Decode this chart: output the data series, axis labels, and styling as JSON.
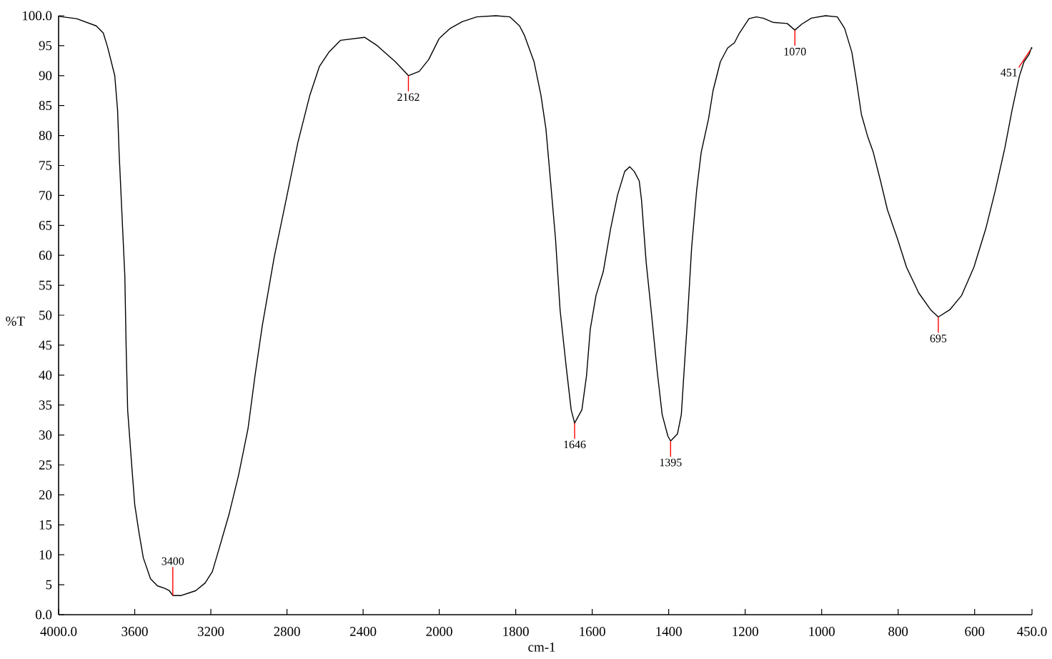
{
  "chart_data": [
    {
      "type": "line",
      "ylabel": "%T",
      "color": "#000000",
      "x": [
        4000,
        3905,
        3802,
        3765,
        3742,
        3705,
        3690,
        3682,
        3667,
        3652,
        3645,
        3637,
        3615,
        3600,
        3577,
        3555,
        3517,
        3480,
        3442,
        3418,
        3400,
        3355,
        3280,
        3230,
        3192,
        3155,
        3105,
        3055,
        3005,
        2968,
        2930,
        2867,
        2805,
        2743,
        2680,
        2630,
        2580,
        2518,
        2392,
        2330,
        2230,
        2162,
        2105,
        2055,
        2005,
        2000
      ],
      "values": [
        99.9,
        99.5,
        98.3,
        97.1,
        94.7,
        90.0,
        84.2,
        77.1,
        66.8,
        56.6,
        44.6,
        34.1,
        24.6,
        18.4,
        13.6,
        9.5,
        6.0,
        4.8,
        4.4,
        4.0,
        3.2,
        3.2,
        4.0,
        5.3,
        7.2,
        11.2,
        16.7,
        23.2,
        31.0,
        39.9,
        48.2,
        59.7,
        69.2,
        78.8,
        86.7,
        91.5,
        93.9,
        95.9,
        96.4,
        95.1,
        92.3,
        90.0,
        90.7,
        92.7,
        95.9,
        96.2
      ],
      "xlim": [
        4000,
        2000
      ],
      "ylim": [
        0,
        100
      ],
      "xticks": [
        {
          "value": 4000,
          "label": "4000.0"
        },
        3600,
        3200,
        2800,
        2400,
        2000
      ],
      "yticks": [
        {
          "value": 0,
          "label": "0.0"
        },
        5,
        10,
        15,
        20,
        25,
        30,
        35,
        40,
        45,
        50,
        55,
        60,
        65,
        70,
        75,
        80,
        85,
        90,
        95,
        {
          "value": 100,
          "label": "100.0"
        }
      ],
      "annotations": [
        {
          "text": "3400",
          "x": 3400,
          "y": 3.2
        },
        {
          "text": "2162",
          "x": 2162,
          "y": 90.0
        }
      ]
    },
    {
      "type": "line",
      "xlabel": "cm-1",
      "color": "#000000",
      "tick_labels": "x",
      "x": [
        2000,
        1971,
        1940,
        1902,
        1852,
        1815,
        1790,
        1777,
        1752,
        1734,
        1721,
        1709,
        1696,
        1684,
        1668,
        1655,
        1646,
        1627,
        1615,
        1605,
        1590,
        1571,
        1552,
        1534,
        1515,
        1502,
        1490,
        1477,
        1471,
        1459,
        1446,
        1430,
        1417,
        1402,
        1395,
        1377,
        1367,
        1359,
        1352,
        1340,
        1327,
        1315,
        1296,
        1284,
        1265,
        1246,
        1228,
        1215,
        1190,
        1171,
        1153,
        1128,
        1090,
        1070,
        1052,
        1027,
        990,
        959,
        940,
        921,
        909,
        896,
        880,
        865,
        846,
        828,
        802,
        778,
        746,
        715,
        695,
        665,
        634,
        602,
        571,
        546,
        521,
        502,
        483,
        471,
        458,
        451,
        450
      ],
      "values": [
        96.2,
        97.9,
        99.0,
        99.8,
        100.0,
        99.8,
        98.3,
        96.7,
        92.3,
        86.7,
        81.1,
        72.4,
        62.8,
        50.9,
        41.4,
        34.2,
        32.0,
        34.2,
        39.8,
        47.7,
        53.3,
        57.3,
        64.4,
        70.0,
        74.0,
        74.8,
        74.0,
        72.4,
        69.2,
        58.9,
        50.9,
        40.6,
        33.4,
        29.8,
        29.0,
        30.2,
        33.4,
        41.4,
        48.2,
        61.3,
        70.8,
        77.2,
        82.7,
        87.5,
        92.3,
        94.6,
        95.5,
        97.1,
        99.5,
        99.8,
        99.6,
        98.9,
        98.7,
        97.6,
        98.6,
        99.6,
        100.0,
        99.8,
        97.9,
        93.9,
        89.1,
        83.5,
        79.9,
        77.2,
        72.4,
        67.6,
        62.8,
        58.0,
        53.7,
        50.9,
        49.7,
        50.9,
        53.3,
        58.0,
        64.4,
        70.8,
        77.9,
        84.3,
        89.9,
        92.3,
        93.5,
        94.7,
        94.5
      ],
      "xlim": [
        2000,
        450
      ],
      "ylim": [
        0,
        100
      ],
      "xticks": [
        1800,
        1600,
        1400,
        1200,
        1000,
        800,
        600,
        {
          "value": 450,
          "label": "450.0"
        }
      ],
      "annotations": [
        {
          "text": "1646",
          "x": 1646,
          "y": 32.0
        },
        {
          "text": "1395",
          "x": 1395,
          "y": 29.0
        },
        {
          "text": "1070",
          "x": 1070,
          "y": 97.6
        },
        {
          "text": "695",
          "x": 695,
          "y": 49.7
        },
        {
          "text": "451",
          "x": 451,
          "y": 94.7
        }
      ]
    }
  ]
}
